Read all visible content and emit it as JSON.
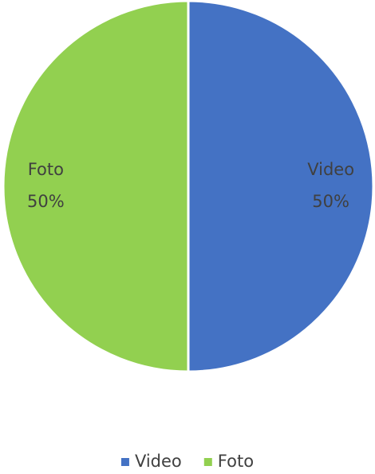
{
  "chart_data": {
    "type": "pie",
    "categories": [
      "Video",
      "Foto"
    ],
    "values": [
      50,
      50
    ],
    "value_labels": [
      "50%",
      "50%"
    ],
    "colors": [
      "#4472c4",
      "#92d050"
    ],
    "legend": "bottom"
  }
}
